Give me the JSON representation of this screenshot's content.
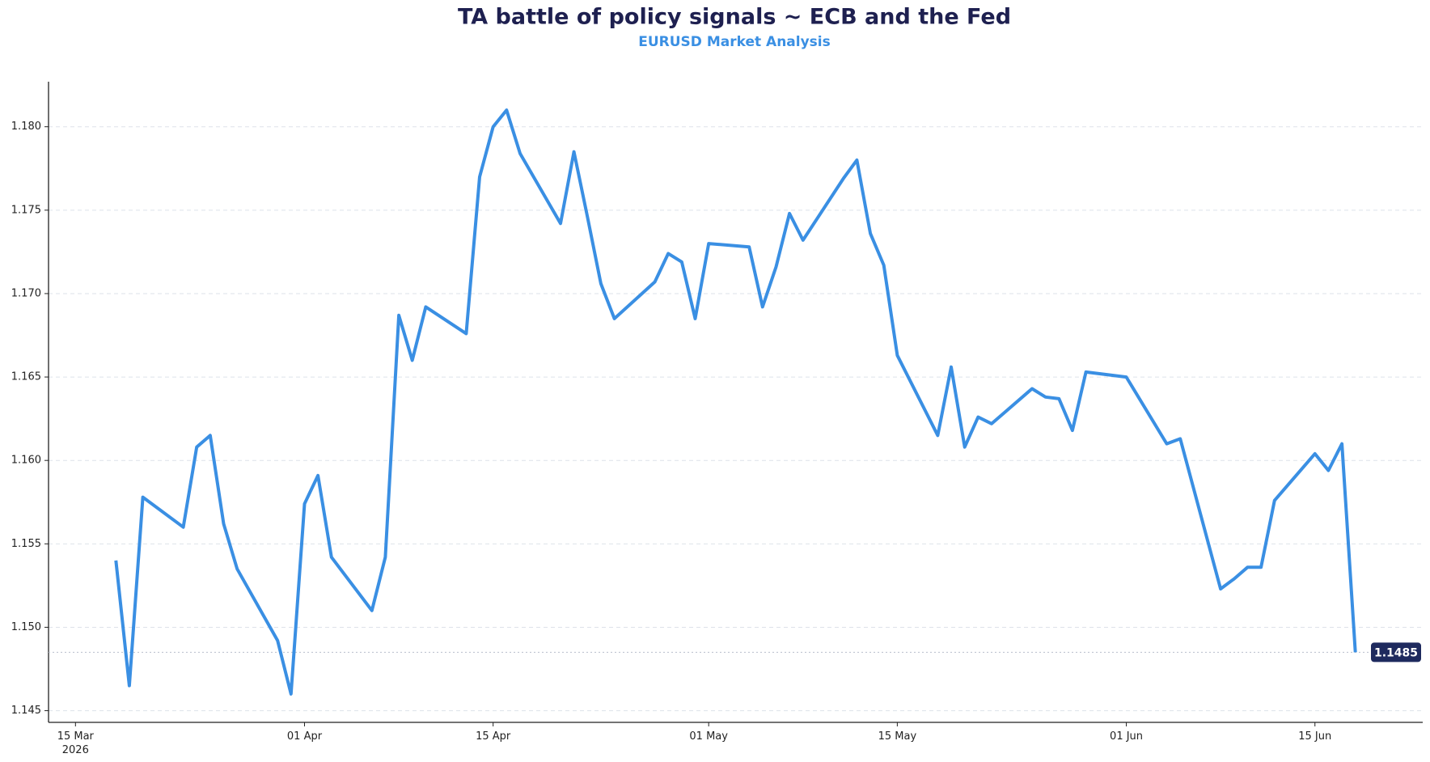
{
  "chart_data": {
    "type": "line",
    "title": "TA battle of policy signals ~ ECB and the Fed",
    "subtitle": "EURUSD Market Analysis",
    "x": [
      "2026-03-18",
      "2026-03-19",
      "2026-03-20",
      "2026-03-23",
      "2026-03-24",
      "2026-03-25",
      "2026-03-26",
      "2026-03-27",
      "2026-03-30",
      "2026-03-31",
      "2026-04-01",
      "2026-04-02",
      "2026-04-03",
      "2026-04-06",
      "2026-04-07",
      "2026-04-08",
      "2026-04-09",
      "2026-04-10",
      "2026-04-13",
      "2026-04-14",
      "2026-04-15",
      "2026-04-16",
      "2026-04-17",
      "2026-04-20",
      "2026-04-21",
      "2026-04-22",
      "2026-04-23",
      "2026-04-24",
      "2026-04-27",
      "2026-04-28",
      "2026-04-29",
      "2026-04-30",
      "2026-05-01",
      "2026-05-04",
      "2026-05-05",
      "2026-05-06",
      "2026-05-07",
      "2026-05-08",
      "2026-05-11",
      "2026-05-12",
      "2026-05-13",
      "2026-05-14",
      "2026-05-15",
      "2026-05-18",
      "2026-05-19",
      "2026-05-20",
      "2026-05-21",
      "2026-05-22",
      "2026-05-25",
      "2026-05-26",
      "2026-05-27",
      "2026-05-28",
      "2026-05-29",
      "2026-06-01",
      "2026-06-04",
      "2026-06-05",
      "2026-06-08",
      "2026-06-09",
      "2026-06-10",
      "2026-06-11",
      "2026-06-12",
      "2026-06-15",
      "2026-06-16",
      "2026-06-17",
      "2026-06-18"
    ],
    "series": [
      {
        "name": "EURUSD",
        "color": "#3a8fe3",
        "values": [
          1.154,
          1.1465,
          1.1578,
          1.156,
          1.1608,
          1.1615,
          1.1562,
          1.1535,
          1.1492,
          1.146,
          1.1574,
          1.1591,
          1.1542,
          1.151,
          1.1542,
          1.1687,
          1.166,
          1.1692,
          1.1676,
          1.177,
          1.18,
          1.181,
          1.1784,
          1.1742,
          1.1785,
          1.1746,
          1.1706,
          1.1685,
          1.1707,
          1.1724,
          1.1719,
          1.1685,
          1.173,
          1.1728,
          1.1692,
          1.1716,
          1.1748,
          1.1732,
          1.1769,
          1.178,
          1.1736,
          1.1717,
          1.1663,
          1.1615,
          1.1656,
          1.1608,
          1.1626,
          1.1622,
          1.1643,
          1.1638,
          1.1637,
          1.1618,
          1.1653,
          1.165,
          1.161,
          1.1613,
          1.1523,
          1.1529,
          1.1536,
          1.1536,
          1.1576,
          1.1604,
          1.1594,
          1.161,
          1.1485
        ]
      }
    ],
    "xlim": [
      "2026-03-13",
      "2026-06-23"
    ],
    "xticks": [
      {
        "value": "2026-03-15",
        "label": "15 Mar\n2026"
      },
      {
        "value": "2026-04-01",
        "label": "01 Apr"
      },
      {
        "value": "2026-04-15",
        "label": "15 Apr"
      },
      {
        "value": "2026-05-01",
        "label": "01 May"
      },
      {
        "value": "2026-05-15",
        "label": "15 May"
      },
      {
        "value": "2026-06-01",
        "label": "01 Jun"
      },
      {
        "value": "2026-06-15",
        "label": "15 Jun"
      }
    ],
    "ylim": [
      1.1443,
      1.1827
    ],
    "yticks": [
      1.145,
      {
        "value": 1.15,
        "label": "1.150"
      },
      1.155,
      {
        "value": 1.16,
        "label": "1.160"
      },
      1.165,
      {
        "value": 1.17,
        "label": "1.170"
      },
      1.175,
      {
        "value": 1.18,
        "label": "1.180"
      }
    ],
    "grid": true
  }
}
